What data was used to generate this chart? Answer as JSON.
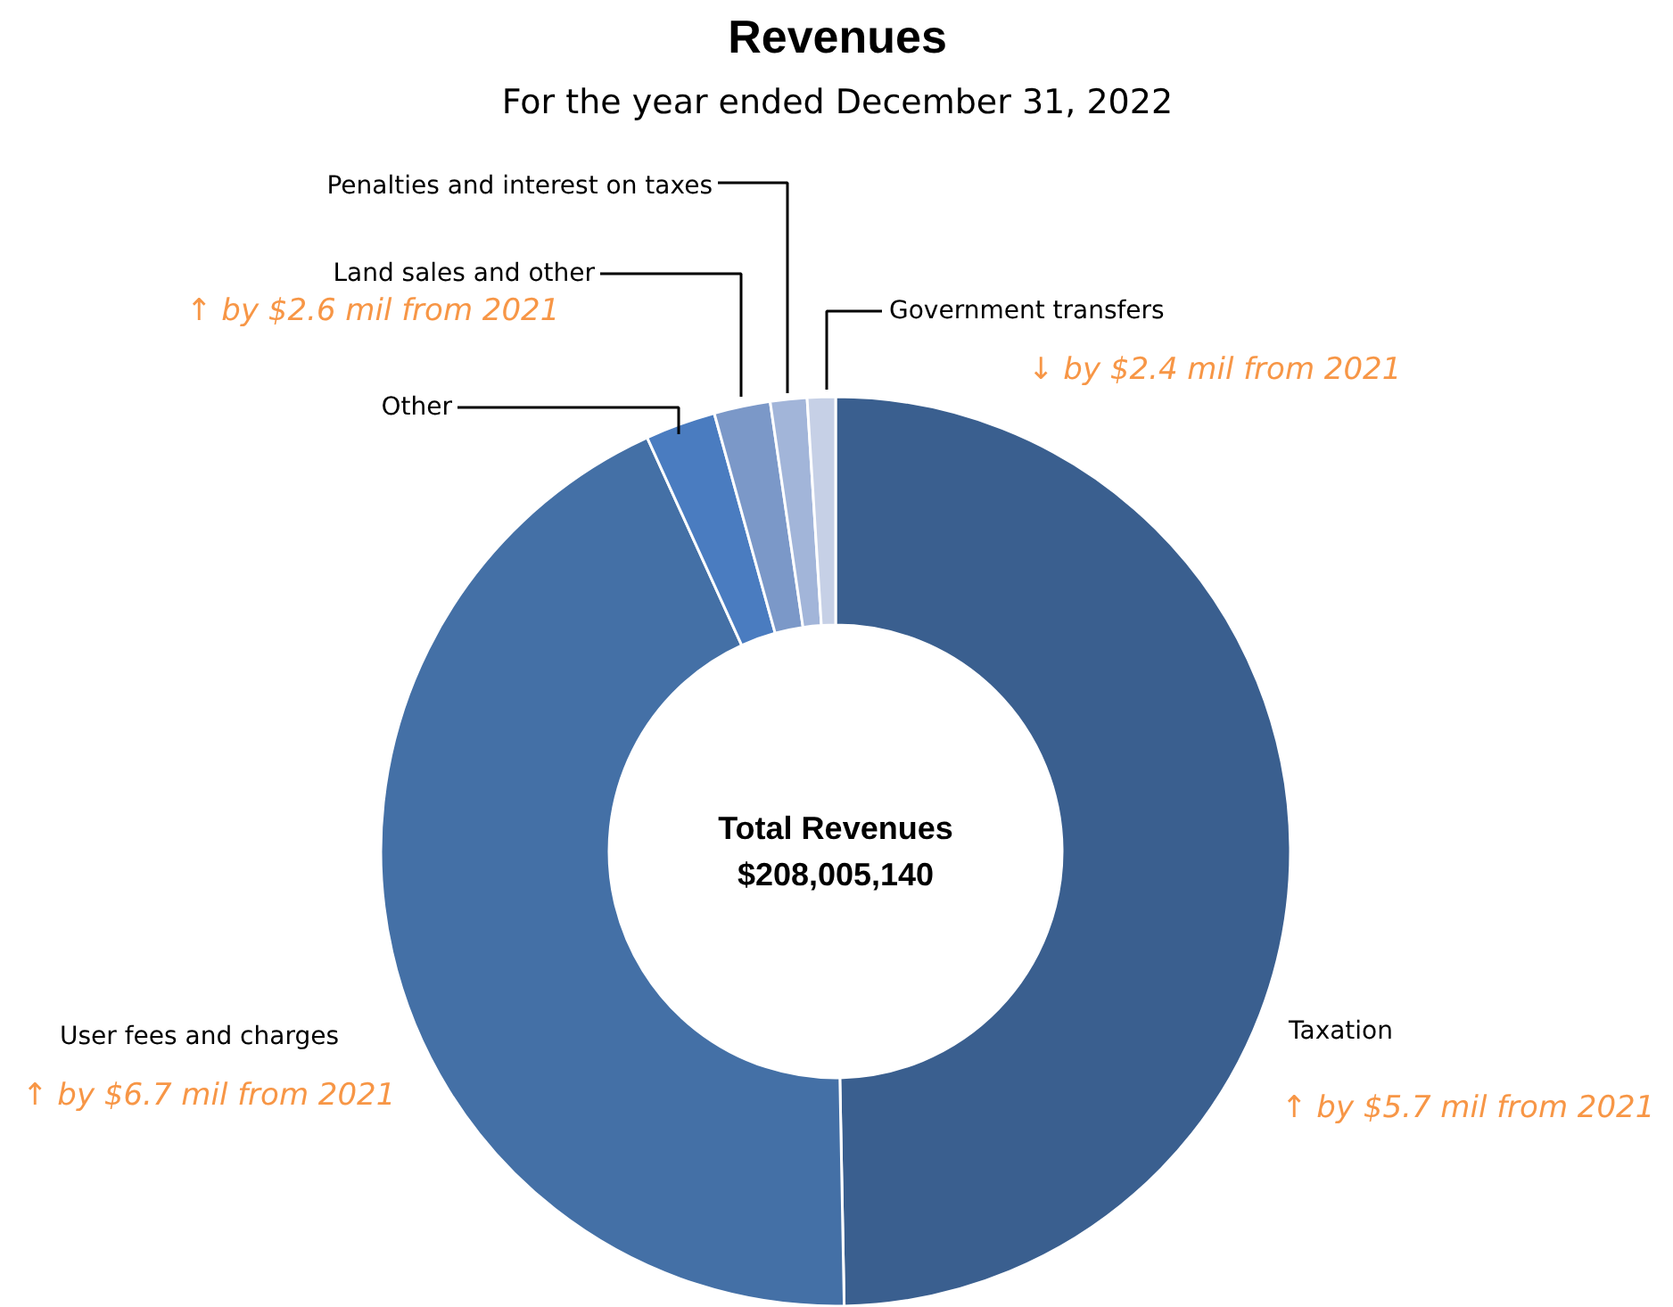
{
  "chart_data": {
    "type": "donut",
    "title": "Revenues",
    "subtitle": "For the year ended December 31, 2022",
    "categories": [
      "Taxation",
      "User fees and charges",
      "Other",
      "Land sales and other",
      "Penalties and interest on taxes",
      "Government transfers"
    ],
    "values": [
      49.7,
      43.5,
      2.5,
      2.0,
      1.3,
      1.0
    ],
    "colors": [
      "#3a5f8f",
      "#4470a6",
      "#4a7cc0",
      "#7b98c8",
      "#a2b5d9",
      "#c6d0e6"
    ],
    "annotations": [
      "↑ by $2.6 mil from 2021",
      "↓ by $2.4 mil from 2021",
      "↑ by $6.7 mil from 2021",
      "↑ by $5.7 mil from 2021",
      "Total Revenues\n$208,005,140"
    ]
  }
}
